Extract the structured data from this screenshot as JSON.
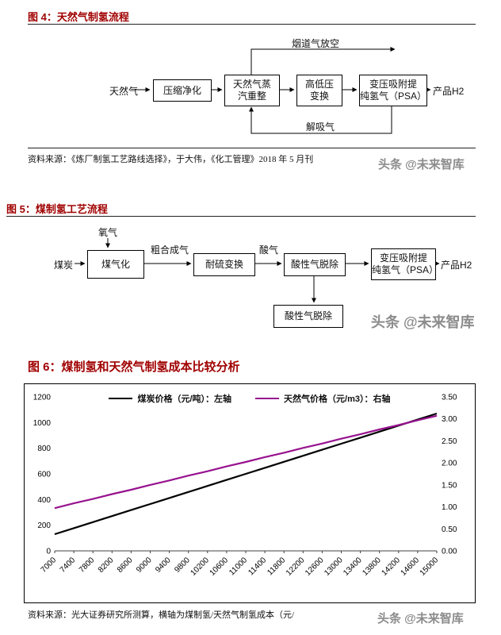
{
  "watermark": "头条 @未来智库",
  "colors": {
    "figure_title": "#A00000",
    "coal_line": "#000000",
    "gas_line": "#97138F",
    "watermark": "#8C8C8C"
  },
  "figure4": {
    "title": "图 4：天然气制氢流程",
    "source": "资料来源：《炼厂制氢工艺路线选择》，于大伟，《化工管理》2018 年 5 月刊",
    "labels": {
      "input": "天然气",
      "flue_gas": "烟道气放空",
      "desorption_gas": "解吸气",
      "product": "产品H2"
    },
    "boxes": {
      "compression": "压缩净化",
      "reforming": "天然气蒸\n汽重整",
      "shift": "高低压\n变换",
      "psa": "变压吸附提\n纯氢气（PSA）"
    }
  },
  "figure5": {
    "title": "图 5：煤制氢工艺流程",
    "labels": {
      "oxygen": "氧气",
      "coal": "煤炭",
      "crude_syngas": "粗合成气",
      "acid_gas": "酸气",
      "product": "产品H2"
    },
    "boxes": {
      "gasification": "煤气化",
      "sulfur_shift": "耐硫变换",
      "acid_removal": "酸性气脱除",
      "psa": "变压吸附提\n纯氢气（PSA）",
      "acid_removal_out": "酸性气脱除"
    }
  },
  "figure6": {
    "title": "图 6：煤制氢和天然气制氢成本比较分析",
    "source": "资料来源：光大证券研究所测算，横轴为煤制氢/天然气制氢成本（元/"
  },
  "chart_data": {
    "type": "line",
    "title": "煤制氢和天然气制氢成本比较分析",
    "x": [
      7000,
      7400,
      7800,
      8200,
      8600,
      9000,
      9400,
      9800,
      10200,
      10600,
      11000,
      11400,
      11800,
      12200,
      12600,
      13000,
      13400,
      13800,
      14200,
      14600,
      15000
    ],
    "series": [
      {
        "name": "煤炭价格（元/吨）：左轴",
        "axis": "left",
        "color": "#000000",
        "values": [
          130,
          177,
          224,
          271,
          318,
          365,
          412,
          459,
          506,
          553,
          600,
          647,
          694,
          741,
          788,
          835,
          882,
          929,
          976,
          1023,
          1070
        ]
      },
      {
        "name": "天然气价格（元/m3）：右轴",
        "axis": "right",
        "color": "#97138F",
        "values": [
          0.97,
          1.08,
          1.18,
          1.29,
          1.39,
          1.5,
          1.6,
          1.71,
          1.81,
          1.92,
          2.02,
          2.13,
          2.23,
          2.34,
          2.44,
          2.55,
          2.65,
          2.76,
          2.86,
          2.97,
          3.07
        ]
      }
    ],
    "left_axis": {
      "min": 0,
      "max": 1200,
      "step": 200
    },
    "right_axis": {
      "min": 0,
      "max": 3.5,
      "step": 0.5
    },
    "x_tick_step": 400,
    "legend_position": "top",
    "grid": false
  }
}
